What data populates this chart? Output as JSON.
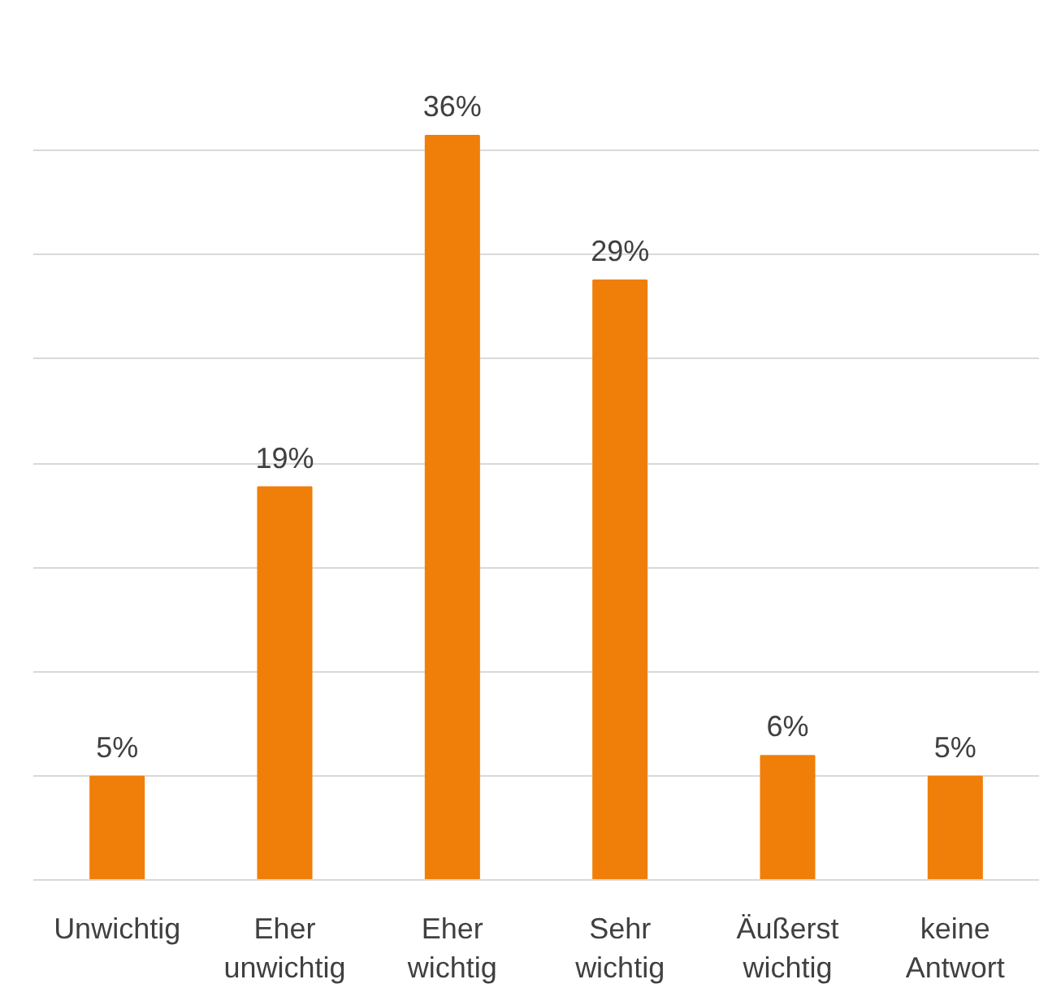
{
  "chart_data": {
    "type": "bar",
    "categories": [
      "Unwichtig",
      "Eher unwichtig",
      "Eher wichtig",
      "Sehr wichtig",
      "Äußerst wichtig",
      "keine Antwort"
    ],
    "values": [
      5,
      19,
      36,
      29,
      6,
      5
    ],
    "color": "#f07f09",
    "value_labels": [
      "5%",
      "19%",
      "36%",
      "29%",
      "6%",
      "5%"
    ],
    "tick_labels": "x",
    "grid": "y"
  }
}
